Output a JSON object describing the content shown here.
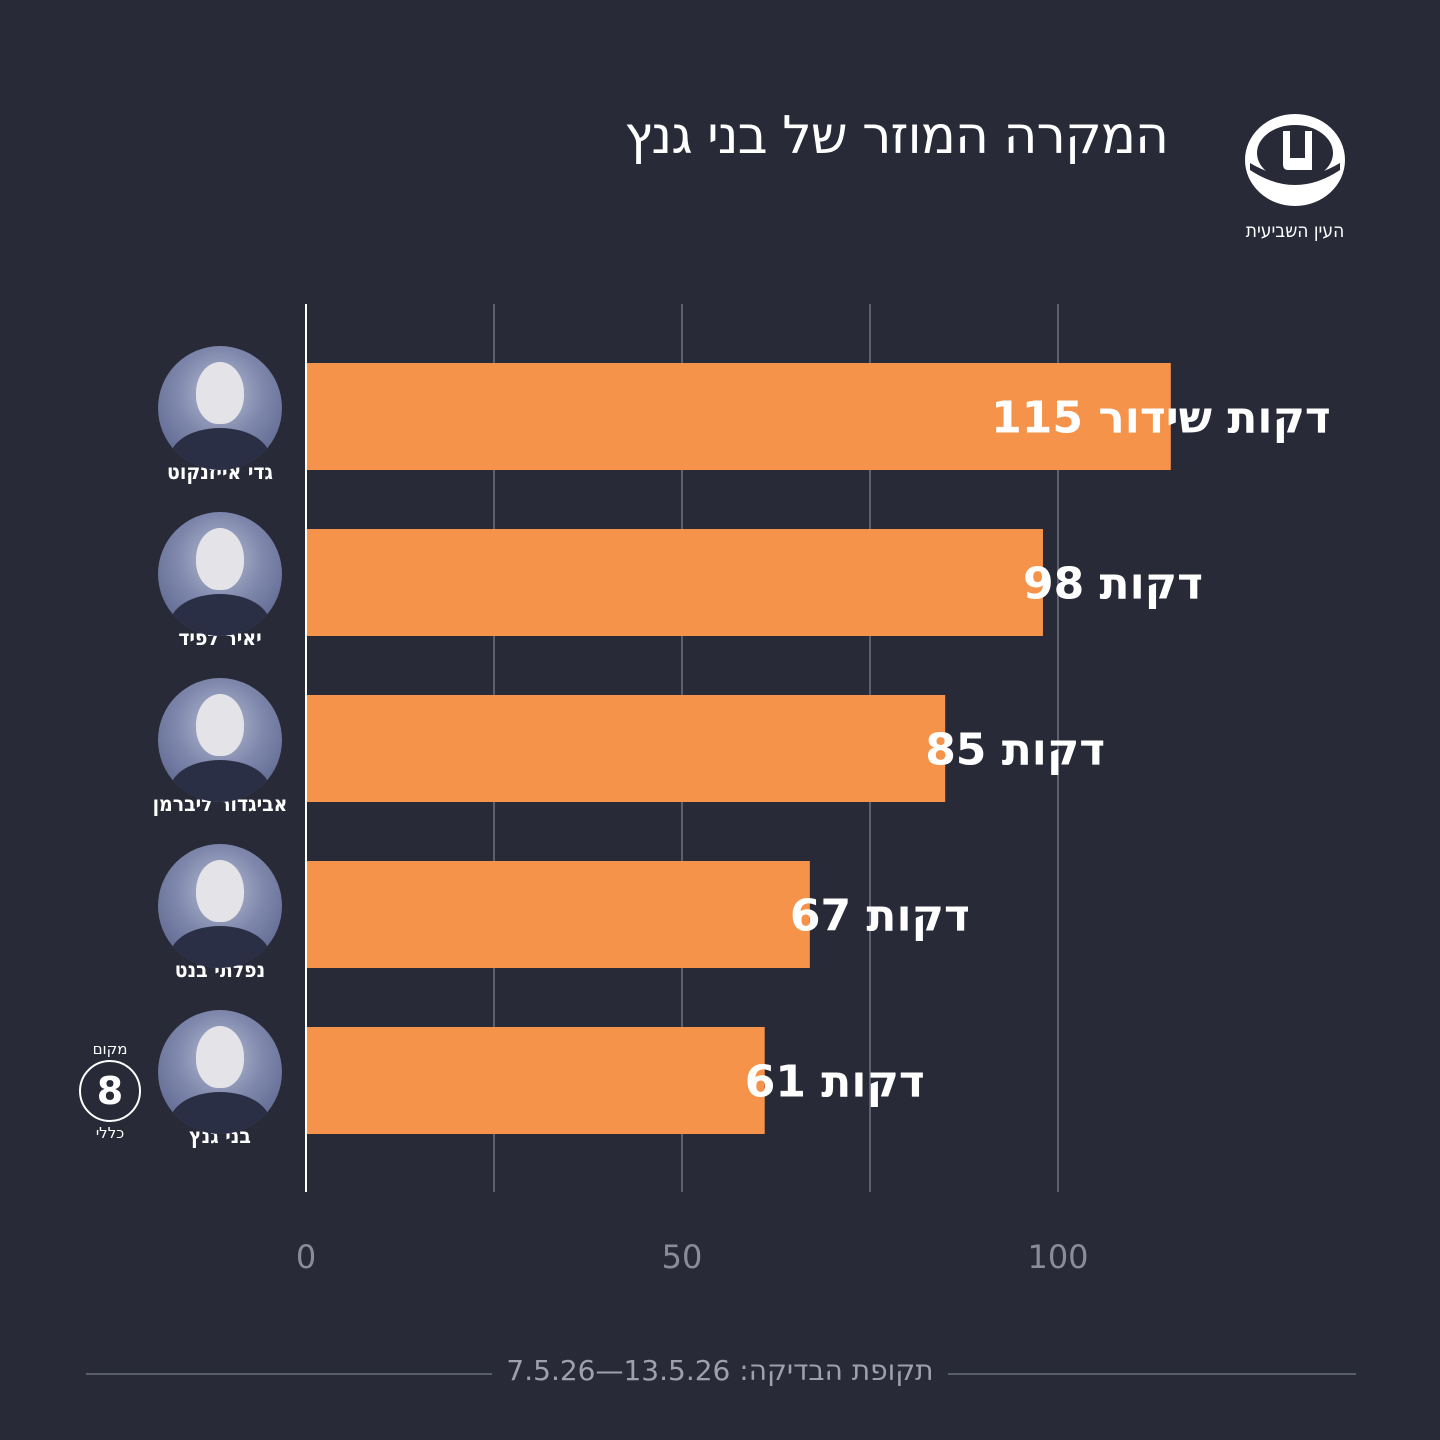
{
  "title": "המקרה המוזר של בני גנץ",
  "logo": {
    "text": "העין השביעית",
    "icon": "eye-logo-icon"
  },
  "chart_data": {
    "type": "bar",
    "orientation": "horizontal",
    "categories": [
      "גדי אייזנקוט",
      "יאיר לפיד",
      "אביגדור ליברמן",
      "נפלתי בנט",
      "בני גנץ"
    ],
    "values": [
      115,
      98,
      85,
      67,
      61
    ],
    "value_labels": [
      "115 דקות שידור",
      "98 דקות",
      "85 דקות",
      "67 דקות",
      "61 דקות"
    ],
    "xlim": [
      0,
      117
    ],
    "x_ticks": [
      0,
      50,
      100
    ],
    "grid": true,
    "bar_color": "#f5934a"
  },
  "rank_badge": {
    "top": "מקום",
    "number": "8",
    "bottom": "כללי"
  },
  "footer": {
    "text": "תקופת הבדיקה: 13.5.26—7.5.26"
  },
  "colors": {
    "background": "#282a37",
    "bar": "#f5934a",
    "grid": "#5c5f6e",
    "axis": "#ffffff"
  }
}
